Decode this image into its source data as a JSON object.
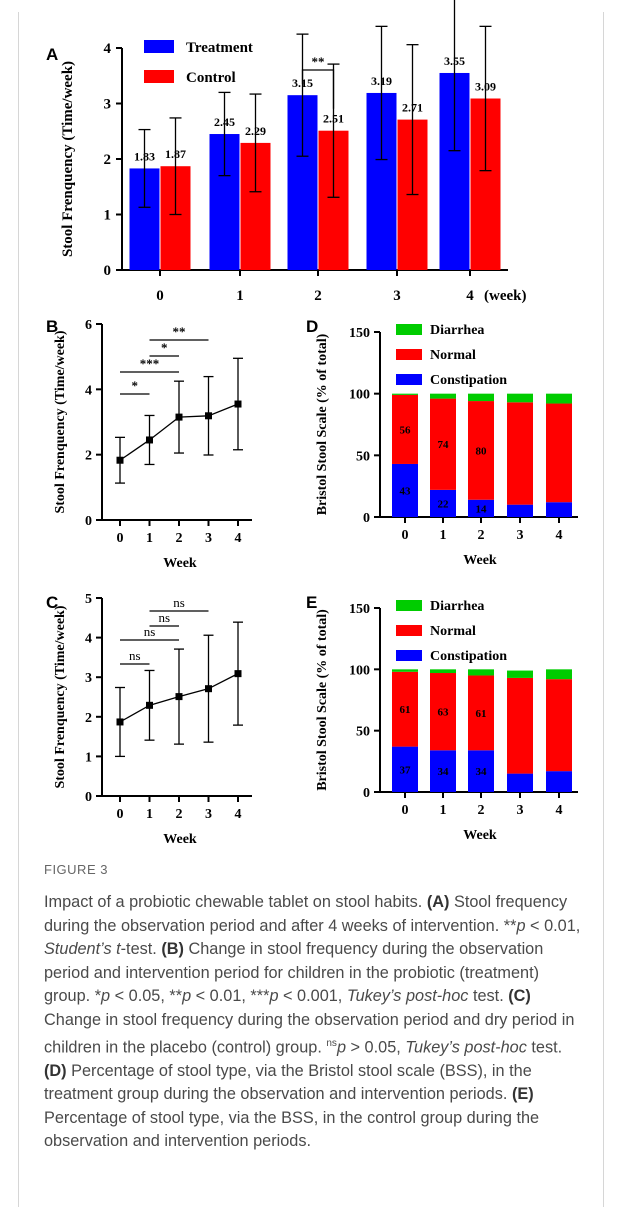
{
  "figure_label": "FIGURE 3",
  "caption": [
    {
      "t": "Impact of a probiotic chewable tablet on stool habits. "
    },
    {
      "t": "(A)",
      "s": "b"
    },
    {
      "t": " Stool frequency during the observation period and after 4 weeks of intervention. **"
    },
    {
      "t": "p",
      "s": "i"
    },
    {
      "t": " < 0.01, "
    },
    {
      "t": "Student’s t",
      "s": "i"
    },
    {
      "t": "-test. "
    },
    {
      "t": "(B)",
      "s": "b"
    },
    {
      "t": " Change in stool frequency during the observation period and intervention period for children in the probiotic (treatment) group. *"
    },
    {
      "t": "p",
      "s": "i"
    },
    {
      "t": " < 0.05, **"
    },
    {
      "t": "p",
      "s": "i"
    },
    {
      "t": " < 0.01, ***"
    },
    {
      "t": "p",
      "s": "i"
    },
    {
      "t": " < 0.001, "
    },
    {
      "t": "Tukey’s post-hoc",
      "s": "i"
    },
    {
      "t": " test. "
    },
    {
      "t": "(C)",
      "s": "b"
    },
    {
      "t": " Change in stool frequency during the observation period and dry period in children in the placebo (control) group. "
    },
    {
      "t": "ns",
      "s": "sup"
    },
    {
      "t": "p",
      "s": "i"
    },
    {
      "t": " > 0.05, "
    },
    {
      "t": "Tukey’s post-hoc",
      "s": "i"
    },
    {
      "t": " test. "
    },
    {
      "t": "(D)",
      "s": "b"
    },
    {
      "t": " Percentage of stool type, via the Bristol stool scale (BSS), in the treatment group during the observation and intervention periods. "
    },
    {
      "t": "(E)",
      "s": "b"
    },
    {
      "t": " Percentage of stool type, via the BSS, in the control group during the observation and intervention periods."
    }
  ],
  "colors": {
    "treatment": "#0000ff",
    "control": "#ff0000",
    "normal": "#ff0000",
    "constipation": "#0000ff",
    "diarrhea": "#00cc00"
  },
  "chart_data": [
    {
      "panel": "A",
      "type": "bar",
      "ylabel": "Stool Frenquency (Time/week)",
      "xunit": "(week)",
      "categories": [
        "0",
        "1",
        "2",
        "3",
        "4"
      ],
      "ylim": [
        0,
        4
      ],
      "yticks": [
        0,
        1,
        2,
        3,
        4
      ],
      "series": [
        {
          "name": "Treatment",
          "values": [
            1.83,
            2.45,
            3.15,
            3.19,
            3.55
          ],
          "labels": [
            "1.83",
            "2.45",
            "3.15",
            "3.19",
            "3.55"
          ],
          "err": [
            0.7,
            0.75,
            1.1,
            1.2,
            1.4
          ]
        },
        {
          "name": "Control",
          "values": [
            1.87,
            2.29,
            2.51,
            2.71,
            3.09
          ],
          "labels": [
            "1.87",
            "2.29",
            "2.51",
            "2.71",
            "3.09"
          ],
          "err": [
            0.87,
            0.88,
            1.2,
            1.35,
            1.3
          ]
        }
      ],
      "significance": [
        {
          "from": "2",
          "to": "2",
          "text": "**"
        }
      ]
    },
    {
      "panel": "B",
      "type": "line",
      "ylabel": "Stool Frenquency (Time/week)",
      "xlabel": "Week",
      "x": [
        "0",
        "1",
        "2",
        "3",
        "4"
      ],
      "y": [
        1.83,
        2.45,
        3.15,
        3.19,
        3.55
      ],
      "err": [
        0.7,
        0.75,
        1.1,
        1.2,
        1.4
      ],
      "ylim": [
        0,
        6
      ],
      "yticks": [
        0,
        2,
        4,
        6
      ],
      "significance": [
        {
          "from": 0,
          "to": 1,
          "text": "*"
        },
        {
          "from": 0,
          "to": 2,
          "text": "***"
        },
        {
          "from": 1,
          "to": 2,
          "text": "*"
        },
        {
          "from": 1,
          "to": 3,
          "text": "**"
        }
      ]
    },
    {
      "panel": "C",
      "type": "line",
      "ylabel": "Stool Frenquency (Time/week)",
      "xlabel": "Week",
      "x": [
        "0",
        "1",
        "2",
        "3",
        "4"
      ],
      "y": [
        1.87,
        2.29,
        2.51,
        2.71,
        3.09
      ],
      "err": [
        0.87,
        0.88,
        1.2,
        1.35,
        1.3
      ],
      "ylim": [
        0,
        5
      ],
      "yticks": [
        0,
        1,
        2,
        3,
        4,
        5
      ],
      "significance": [
        {
          "from": 0,
          "to": 1,
          "text": "ns"
        },
        {
          "from": 0,
          "to": 2,
          "text": "ns"
        },
        {
          "from": 1,
          "to": 2,
          "text": "ns"
        },
        {
          "from": 1,
          "to": 3,
          "text": "ns"
        }
      ]
    },
    {
      "panel": "D",
      "type": "bar",
      "stacked": true,
      "ylabel": "Bristol Stool Scale (% of total)",
      "xlabel": "Week",
      "categories": [
        "0",
        "1",
        "2",
        "3",
        "4"
      ],
      "ylim": [
        0,
        150
      ],
      "yticks": [
        0,
        50,
        100,
        150
      ],
      "series": [
        {
          "name": "Constipation",
          "values": [
            43,
            22,
            14,
            10,
            12
          ],
          "labels": [
            "43",
            "22",
            "14",
            "",
            ""
          ]
        },
        {
          "name": "Normal",
          "values": [
            56,
            74,
            80,
            83,
            80
          ],
          "labels": [
            "56",
            "74",
            "80",
            "",
            ""
          ]
        },
        {
          "name": "Diarrhea",
          "values": [
            1,
            4,
            6,
            7,
            8
          ]
        }
      ],
      "legend": [
        "Diarrhea",
        "Normal",
        "Constipation"
      ]
    },
    {
      "panel": "E",
      "type": "bar",
      "stacked": true,
      "ylabel": "Bristol Stool Scale (% of total)",
      "xlabel": "Week",
      "categories": [
        "0",
        "1",
        "2",
        "3",
        "4"
      ],
      "ylim": [
        0,
        150
      ],
      "yticks": [
        0,
        50,
        100,
        150
      ],
      "series": [
        {
          "name": "Constipation",
          "values": [
            37,
            34,
            34,
            15,
            17
          ],
          "labels": [
            "37",
            "34",
            "34",
            "",
            ""
          ]
        },
        {
          "name": "Normal",
          "values": [
            61,
            63,
            61,
            78,
            75
          ],
          "labels": [
            "61",
            "63",
            "61",
            "",
            ""
          ]
        },
        {
          "name": "Diarrhea",
          "values": [
            2,
            3,
            5,
            6,
            8
          ]
        }
      ],
      "legend": [
        "Diarrhea",
        "Normal",
        "Constipation"
      ]
    }
  ]
}
